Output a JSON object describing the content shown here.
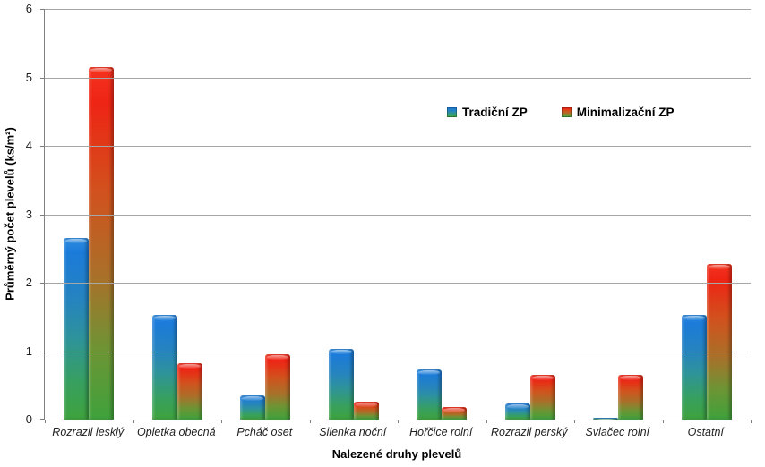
{
  "chart_data": {
    "type": "bar",
    "title": "",
    "xlabel": "Nalezené druhy plevelů",
    "ylabel": "Průměrný počet plevelů (ks/m²)",
    "categories": [
      "Rozrazil lesklý",
      "Opletka obecná",
      "Pcháč oset",
      "Silenka noční",
      "Hořčice rolní",
      "Rozrazil perský",
      "Svlačec rolní",
      "Ostatní"
    ],
    "series": [
      {
        "name": "Tradiční ZP",
        "values": [
          2.65,
          1.53,
          0.35,
          1.03,
          0.73,
          0.23,
          0.02,
          1.53
        ],
        "color_top": "#1b7bd9",
        "color_bottom": "#3ea23c",
        "gradient_stops": [
          "#2e8be0 0%",
          "#1b7bd9 8%",
          "#2684be 35%",
          "#2e939b 55%",
          "#37a05e 80%",
          "#3ea23c 100%"
        ]
      },
      {
        "name": "Minimalizační ZP",
        "values": [
          5.15,
          0.82,
          0.96,
          0.26,
          0.18,
          0.65,
          0.65,
          2.28
        ],
        "color_top": "#ee2414",
        "color_bottom": "#3ea23c",
        "gradient_stops": [
          "#f43420 0%",
          "#ee2414 10%",
          "#d2511d 35%",
          "#a8712a 60%",
          "#6e9434 80%",
          "#3ea23c 100%"
        ]
      }
    ],
    "ylim": [
      0,
      6
    ],
    "yticks": [
      0,
      1,
      2,
      3,
      4,
      5,
      6
    ],
    "grid": true,
    "grid_color": "#a6a6a6",
    "axis_color": "#7f7f7f",
    "legend_position": "inside-top-right",
    "background": "#ffffff"
  }
}
